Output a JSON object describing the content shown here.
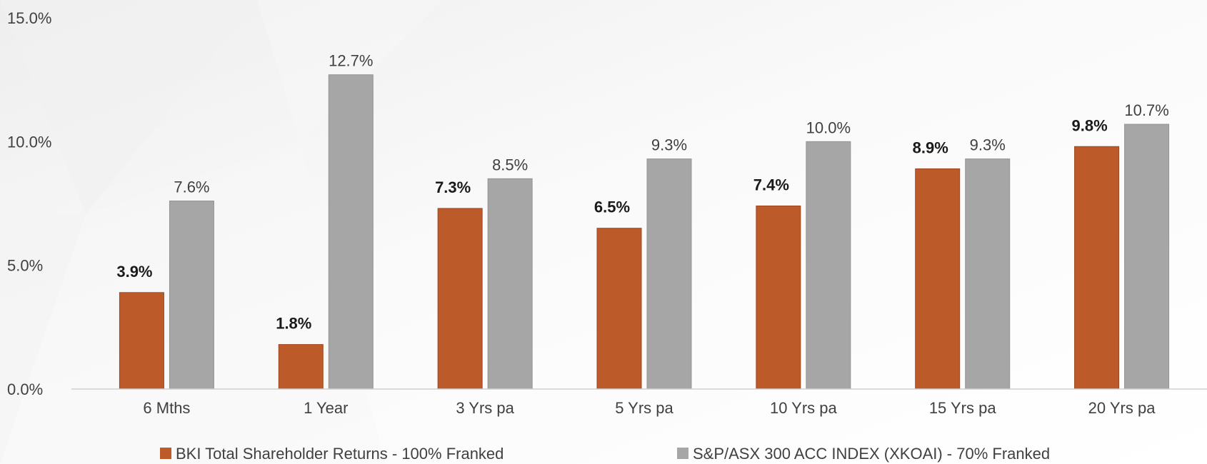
{
  "chart_data": {
    "type": "bar",
    "title": "",
    "xlabel": "",
    "ylabel": "",
    "categories": [
      "6 Mths",
      "1 Year",
      "3 Yrs pa",
      "5 Yrs pa",
      "10 Yrs pa",
      "15 Yrs pa",
      "20 Yrs pa"
    ],
    "series": [
      {
        "name": "BKI Total Shareholder Returns - 100% Franked",
        "color": "#BC5A2A",
        "values": [
          3.9,
          1.8,
          7.3,
          6.5,
          7.4,
          8.9,
          9.8
        ],
        "labels": [
          "3.9%",
          "1.8%",
          "7.3%",
          "6.5%",
          "7.4%",
          "8.9%",
          "9.8%"
        ]
      },
      {
        "name": "S&P/ASX 300 ACC INDEX (XKOAI) - 70% Franked",
        "color": "#A6A6A6",
        "values": [
          7.6,
          12.7,
          8.5,
          9.3,
          10.0,
          9.3,
          10.7
        ],
        "labels": [
          "7.6%",
          "12.7%",
          "8.5%",
          "9.3%",
          "10.0%",
          "9.3%",
          "10.7%"
        ]
      }
    ],
    "ylim": [
      0,
      15
    ],
    "yticks": [
      0,
      5,
      10,
      15
    ],
    "ytick_labels": [
      "0.0%",
      "5.0%",
      "10.0%",
      "15.0%"
    ],
    "grid": false,
    "legend_position": "bottom"
  }
}
